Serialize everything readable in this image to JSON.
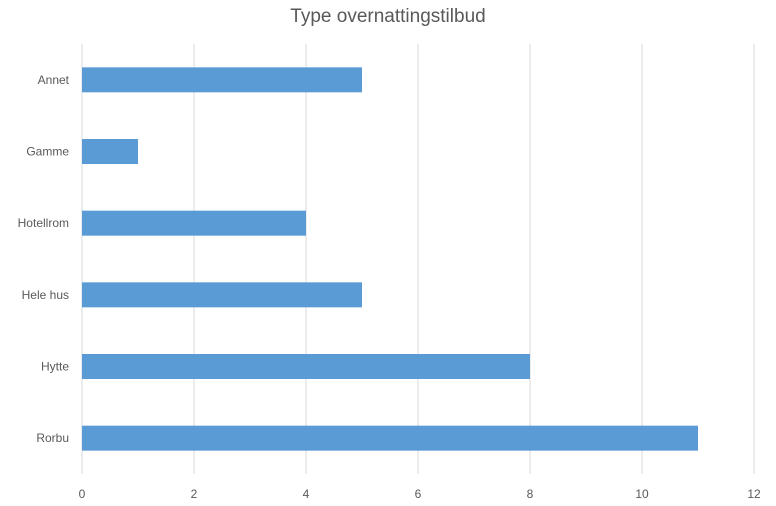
{
  "chart_data": {
    "type": "bar",
    "orientation": "horizontal",
    "title": "Type overnattingstilbud",
    "categories": [
      "Annet",
      "Gamme",
      "Hotellrom",
      "Hele hus",
      "Hytte",
      "Rorbu"
    ],
    "values": [
      5,
      1,
      4,
      5,
      8,
      11
    ],
    "xlim": [
      0,
      12
    ],
    "xticks": [
      0,
      2,
      4,
      6,
      8,
      10,
      12
    ],
    "grid": true,
    "bar_color": "#5b9bd5",
    "grid_color": "#d9d9d9"
  }
}
